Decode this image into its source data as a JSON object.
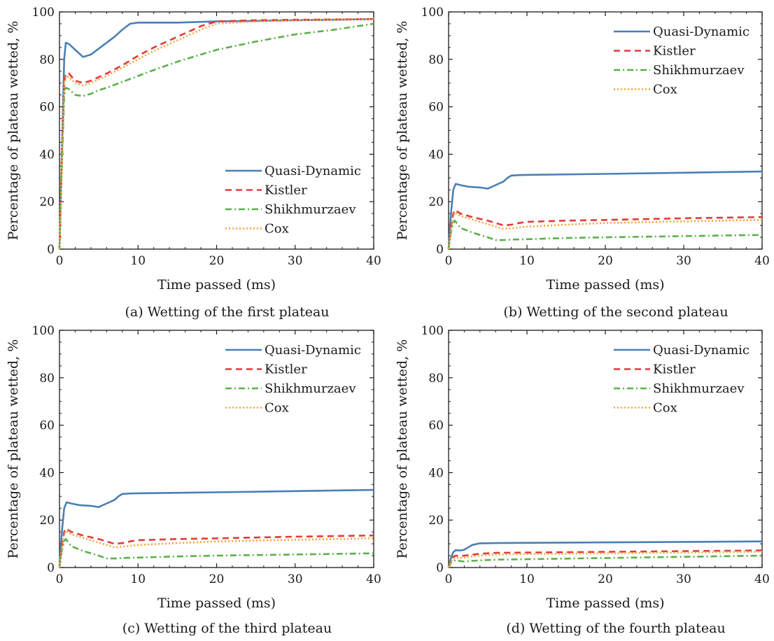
{
  "figure": {
    "colors": {
      "Quasi-Dynamic": "#4a7fb5",
      "Kistler": "#e03b3b",
      "Shikhmurzaev": "#5cb04a",
      "Cox": "#f5a23a",
      "axis": "#1a1a1a"
    },
    "styles": {
      "Quasi-Dynamic": "solid",
      "Kistler": "dashed",
      "Shikhmurzaev": "dashdot",
      "Cox": "dotted"
    }
  },
  "chart_data": [
    {
      "type": "line",
      "caption": "(a) Wetting of the first plateau",
      "xlabel": "Time passed (ms)",
      "ylabel": "Percentage of plateau wetted, %",
      "xlim": [
        0,
        40
      ],
      "ylim": [
        0,
        100
      ],
      "xticks": [
        0,
        10,
        20,
        30,
        40
      ],
      "yticks": [
        0,
        20,
        40,
        60,
        80,
        100
      ],
      "legend": "bottom-right",
      "series": [
        {
          "name": "Quasi-Dynamic",
          "x": [
            0,
            0.3,
            0.6,
            0.8,
            1.2,
            2,
            3,
            4,
            5,
            6,
            7,
            8,
            9,
            10,
            15,
            20,
            25,
            30,
            35,
            40
          ],
          "y": [
            0,
            40,
            80,
            87,
            86.5,
            84,
            81,
            82,
            84.5,
            87,
            89.5,
            92.5,
            95,
            95.5,
            95.5,
            96,
            96.2,
            96.5,
            96.7,
            97
          ]
        },
        {
          "name": "Kistler",
          "x": [
            0,
            0.3,
            0.6,
            0.8,
            1.2,
            2,
            3,
            4,
            5,
            6,
            8,
            10,
            12,
            14,
            16,
            18,
            20,
            25,
            30,
            35,
            40
          ],
          "y": [
            0,
            40,
            70,
            74,
            74,
            71,
            70,
            71,
            72.5,
            74,
            77.5,
            81.5,
            85,
            88,
            91,
            94,
            96,
            96.5,
            96.7,
            96.8,
            97
          ]
        },
        {
          "name": "Shikhmurzaev",
          "x": [
            0,
            0.3,
            0.6,
            0.8,
            1.2,
            2,
            3,
            4,
            5,
            6,
            8,
            10,
            12,
            15,
            20,
            25,
            30,
            35,
            40
          ],
          "y": [
            0,
            35,
            64,
            68,
            67.5,
            65,
            64.5,
            65.5,
            67,
            68,
            70.5,
            73,
            75.5,
            79,
            84,
            87.5,
            90.5,
            92.5,
            95
          ]
        },
        {
          "name": "Cox",
          "x": [
            0,
            0.3,
            0.6,
            0.8,
            1.2,
            2,
            3,
            4,
            5,
            6,
            8,
            10,
            12,
            14,
            16,
            18,
            20,
            25,
            30,
            35,
            40
          ],
          "y": [
            0,
            38,
            69,
            73,
            72.5,
            70,
            69,
            70,
            71.5,
            73,
            76.5,
            80,
            83.5,
            86.5,
            89.5,
            92.5,
            95,
            96,
            96.5,
            96.8,
            97
          ]
        }
      ]
    },
    {
      "type": "line",
      "caption": "(b) Wetting of the second plateau",
      "xlabel": "Time passed (ms)",
      "ylabel": "Percentage of plateau wetted, %",
      "xlim": [
        0,
        40
      ],
      "ylim": [
        0,
        100
      ],
      "xticks": [
        0,
        10,
        20,
        30,
        40
      ],
      "yticks": [
        0,
        20,
        40,
        60,
        80,
        100
      ],
      "legend": "top-right",
      "series": [
        {
          "name": "Quasi-Dynamic",
          "x": [
            0,
            0.3,
            0.6,
            0.9,
            1.5,
            2.5,
            4,
            5,
            6,
            7,
            7.5,
            8,
            9,
            10,
            20,
            30,
            40
          ],
          "y": [
            0,
            15,
            25,
            27.5,
            27,
            26.3,
            26,
            25.5,
            27,
            28.5,
            30,
            31,
            31.2,
            31.3,
            31.7,
            32.2,
            32.7
          ]
        },
        {
          "name": "Kistler",
          "x": [
            0,
            0.3,
            0.6,
            0.8,
            1.5,
            3,
            5,
            6,
            7,
            8,
            9,
            10,
            15,
            20,
            30,
            40
          ],
          "y": [
            0,
            9,
            15,
            16.5,
            15,
            13.5,
            12,
            11,
            10,
            10.3,
            11,
            11.5,
            12,
            12.3,
            13,
            13.5
          ]
        },
        {
          "name": "Shikhmurzaev",
          "x": [
            0,
            0.3,
            0.6,
            0.8,
            1.5,
            3,
            5,
            6,
            7,
            8,
            10,
            15,
            20,
            30,
            40
          ],
          "y": [
            0,
            7,
            11,
            12,
            9,
            7,
            5,
            3.8,
            3.8,
            4,
            4.2,
            4.7,
            5,
            5.5,
            6
          ]
        },
        {
          "name": "Cox",
          "x": [
            0,
            0.3,
            0.6,
            0.8,
            1.5,
            3,
            5,
            6,
            7,
            8,
            10,
            15,
            20,
            30,
            40
          ],
          "y": [
            0,
            8,
            14,
            15.5,
            14,
            12.5,
            10.5,
            9.5,
            8.5,
            8.8,
            9.5,
            10.3,
            11,
            11.7,
            12.3
          ]
        }
      ]
    },
    {
      "type": "line",
      "caption": "(c) Wetting of the third plateau",
      "xlabel": "Time passed (ms)",
      "ylabel": "Percentage of plateau wetted, %",
      "xlim": [
        0,
        40
      ],
      "ylim": [
        0,
        100
      ],
      "xticks": [
        0,
        10,
        20,
        30,
        40
      ],
      "yticks": [
        0,
        20,
        40,
        60,
        80,
        100
      ],
      "legend": "top-right",
      "series": [
        {
          "name": "Quasi-Dynamic",
          "x": [
            0,
            0.3,
            0.6,
            0.9,
            1.5,
            2.5,
            4,
            5,
            6,
            7,
            7.5,
            8,
            9,
            10,
            20,
            30,
            40
          ],
          "y": [
            0,
            15,
            25,
            27.5,
            27,
            26.3,
            26,
            25.5,
            27,
            28.5,
            30,
            31,
            31.2,
            31.3,
            31.7,
            32.2,
            32.7
          ]
        },
        {
          "name": "Kistler",
          "x": [
            0,
            0.3,
            0.6,
            0.8,
            1.5,
            3,
            5,
            6,
            7,
            8,
            9,
            10,
            15,
            20,
            30,
            40
          ],
          "y": [
            0,
            9,
            15,
            16.5,
            15,
            13.5,
            12,
            11,
            10,
            10.3,
            11,
            11.5,
            12,
            12.3,
            13,
            13.5
          ]
        },
        {
          "name": "Shikhmurzaev",
          "x": [
            0,
            0.3,
            0.6,
            0.8,
            1.5,
            3,
            5,
            6,
            7,
            8,
            10,
            15,
            20,
            30,
            40
          ],
          "y": [
            0,
            7,
            11,
            12,
            9,
            7,
            5,
            3.8,
            3.8,
            4,
            4.2,
            4.7,
            5,
            5.5,
            6
          ]
        },
        {
          "name": "Cox",
          "x": [
            0,
            0.3,
            0.6,
            0.8,
            1.5,
            3,
            5,
            6,
            7,
            8,
            10,
            15,
            20,
            30,
            40
          ],
          "y": [
            0,
            8,
            14,
            15.5,
            14,
            12.5,
            10.5,
            9.5,
            8.5,
            8.8,
            9.5,
            10.3,
            11,
            11.7,
            12.3
          ]
        }
      ]
    },
    {
      "type": "line",
      "caption": "(d) Wetting of the fourth plateau",
      "xlabel": "Time passed (ms)",
      "ylabel": "Percentage of plateau wetted, %",
      "xlim": [
        0,
        40
      ],
      "ylim": [
        0,
        100
      ],
      "xticks": [
        0,
        10,
        20,
        30,
        40
      ],
      "yticks": [
        0,
        20,
        40,
        60,
        80,
        100
      ],
      "legend": "top-right",
      "series": [
        {
          "name": "Quasi-Dynamic",
          "x": [
            0,
            0.3,
            0.6,
            0.9,
            1.5,
            2,
            2.5,
            3,
            4,
            6,
            10,
            20,
            30,
            40
          ],
          "y": [
            0,
            4,
            6.5,
            7.3,
            7.2,
            7.5,
            8.5,
            9.5,
            10.2,
            10.3,
            10.4,
            10.6,
            10.8,
            11
          ]
        },
        {
          "name": "Kistler",
          "x": [
            0,
            0.3,
            0.6,
            0.9,
            1.5,
            2,
            3,
            4,
            5,
            6,
            10,
            20,
            30,
            40
          ],
          "y": [
            0,
            3,
            4.5,
            5,
            4.8,
            5,
            5.4,
            5.8,
            6,
            6.2,
            6.3,
            6.6,
            6.9,
            7.2
          ]
        },
        {
          "name": "Shikhmurzaev",
          "x": [
            0,
            0.3,
            0.6,
            0.9,
            1.5,
            2,
            3,
            4,
            6,
            10,
            20,
            30,
            40
          ],
          "y": [
            0,
            2,
            2.8,
            3,
            2.7,
            2.5,
            2.8,
            3,
            3.3,
            3.5,
            4,
            4.5,
            5
          ]
        },
        {
          "name": "Cox",
          "x": [
            0,
            0.3,
            0.6,
            0.9,
            1.5,
            2,
            3,
            4,
            5,
            6,
            10,
            20,
            30,
            40
          ],
          "y": [
            0,
            2.5,
            3.7,
            4.2,
            4,
            4.2,
            4.7,
            5.1,
            5.3,
            5.5,
            5.7,
            6,
            6.3,
            6.7
          ]
        }
      ]
    }
  ]
}
